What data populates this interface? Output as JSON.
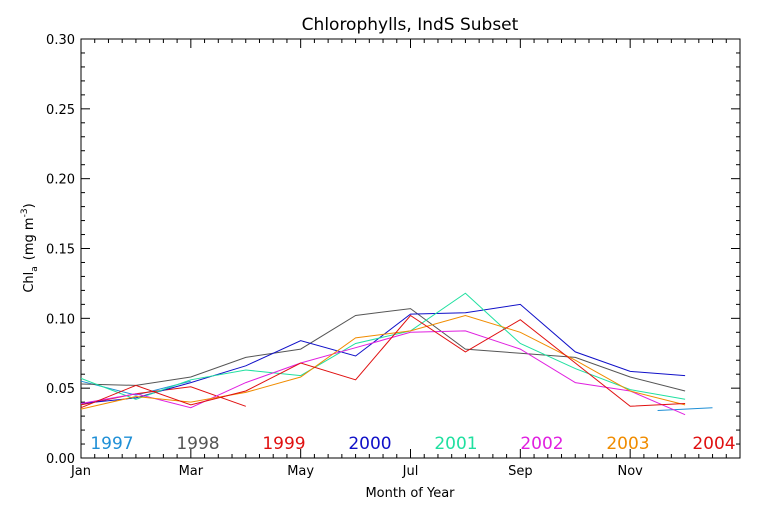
{
  "chart_data": {
    "type": "line",
    "title": "Chlorophylls, IndS Subset",
    "xlabel": "Month of Year",
    "ylabel": "Chl",
    "ylabel_sub": "a",
    "ylabel_unit": "(mg m",
    "ylabel_sup": "-3",
    "ylabel_close": ")",
    "xlim": [
      1,
      13
    ],
    "ylim": [
      0,
      0.3
    ],
    "x_tick_labels": [
      {
        "x": 1,
        "label": "Jan"
      },
      {
        "x": 3,
        "label": "Mar"
      },
      {
        "x": 5,
        "label": "May"
      },
      {
        "x": 7,
        "label": "Jul"
      },
      {
        "x": 9,
        "label": "Sep"
      },
      {
        "x": 11,
        "label": "Nov"
      }
    ],
    "y_tick_labels": [
      {
        "y": 0.0,
        "label": "0.00"
      },
      {
        "y": 0.05,
        "label": "0.05"
      },
      {
        "y": 0.1,
        "label": "0.10"
      },
      {
        "y": 0.15,
        "label": "0.15"
      },
      {
        "y": 0.2,
        "label": "0.20"
      },
      {
        "y": 0.25,
        "label": "0.25"
      },
      {
        "y": 0.3,
        "label": "0.30"
      }
    ],
    "legend_placement": "bottom",
    "series": [
      {
        "name": "1997",
        "color": "#1f8fd6",
        "x": [
          1,
          2,
          3,
          10.5,
          11.5,
          12.5
        ],
        "values": [
          0.055,
          0.045,
          0.055,
          null,
          0.034,
          0.036
        ]
      },
      {
        "name": "1998",
        "color": "#555555",
        "x": [
          1,
          2,
          3,
          4,
          5,
          6,
          7,
          8,
          9,
          10,
          11,
          12
        ],
        "values": [
          0.053,
          0.052,
          0.058,
          0.072,
          0.078,
          0.102,
          0.107,
          0.078,
          0.075,
          0.072,
          0.058,
          0.048
        ]
      },
      {
        "name": "1999",
        "color": "#e01010",
        "x": [
          1,
          2,
          3,
          4
        ],
        "values": [
          0.038,
          0.046,
          0.051,
          0.037
        ]
      },
      {
        "name": "2000",
        "color": "#1010c8",
        "x": [
          1,
          2,
          3,
          4,
          5,
          6,
          7,
          8,
          9,
          10,
          11,
          12
        ],
        "values": [
          0.039,
          0.043,
          0.054,
          0.066,
          0.084,
          0.073,
          0.103,
          0.104,
          0.11,
          0.076,
          0.062,
          0.059
        ]
      },
      {
        "name": "2001",
        "color": "#20e0a0",
        "x": [
          1,
          2,
          3,
          4,
          5,
          6,
          7,
          8,
          9,
          10,
          11,
          12
        ],
        "values": [
          0.057,
          0.042,
          0.056,
          0.063,
          0.059,
          0.082,
          0.091,
          0.118,
          0.082,
          0.064,
          0.049,
          0.042
        ]
      },
      {
        "name": "2002",
        "color": "#e020e0",
        "x": [
          1,
          2,
          3,
          4,
          5,
          6,
          7,
          8,
          9,
          10,
          11,
          12
        ],
        "values": [
          0.039,
          0.046,
          0.036,
          0.054,
          0.068,
          0.079,
          0.09,
          0.091,
          0.078,
          0.054,
          0.048,
          0.031
        ]
      },
      {
        "name": "2003",
        "color": "#f08c00",
        "x": [
          1,
          2,
          3,
          4,
          5,
          6,
          7,
          8,
          9,
          10,
          11,
          12
        ],
        "values": [
          0.035,
          0.044,
          0.04,
          0.047,
          0.058,
          0.086,
          0.091,
          0.102,
          0.09,
          0.07,
          0.048,
          0.038
        ]
      },
      {
        "name": "2004",
        "color": "#e01010",
        "x": [
          1,
          2,
          3,
          4,
          5,
          6,
          7,
          8,
          9,
          10,
          11,
          12
        ],
        "values": [
          0.036,
          0.052,
          0.038,
          0.048,
          0.068,
          0.056,
          0.102,
          0.076,
          0.099,
          0.068,
          0.037,
          0.039
        ]
      }
    ]
  }
}
